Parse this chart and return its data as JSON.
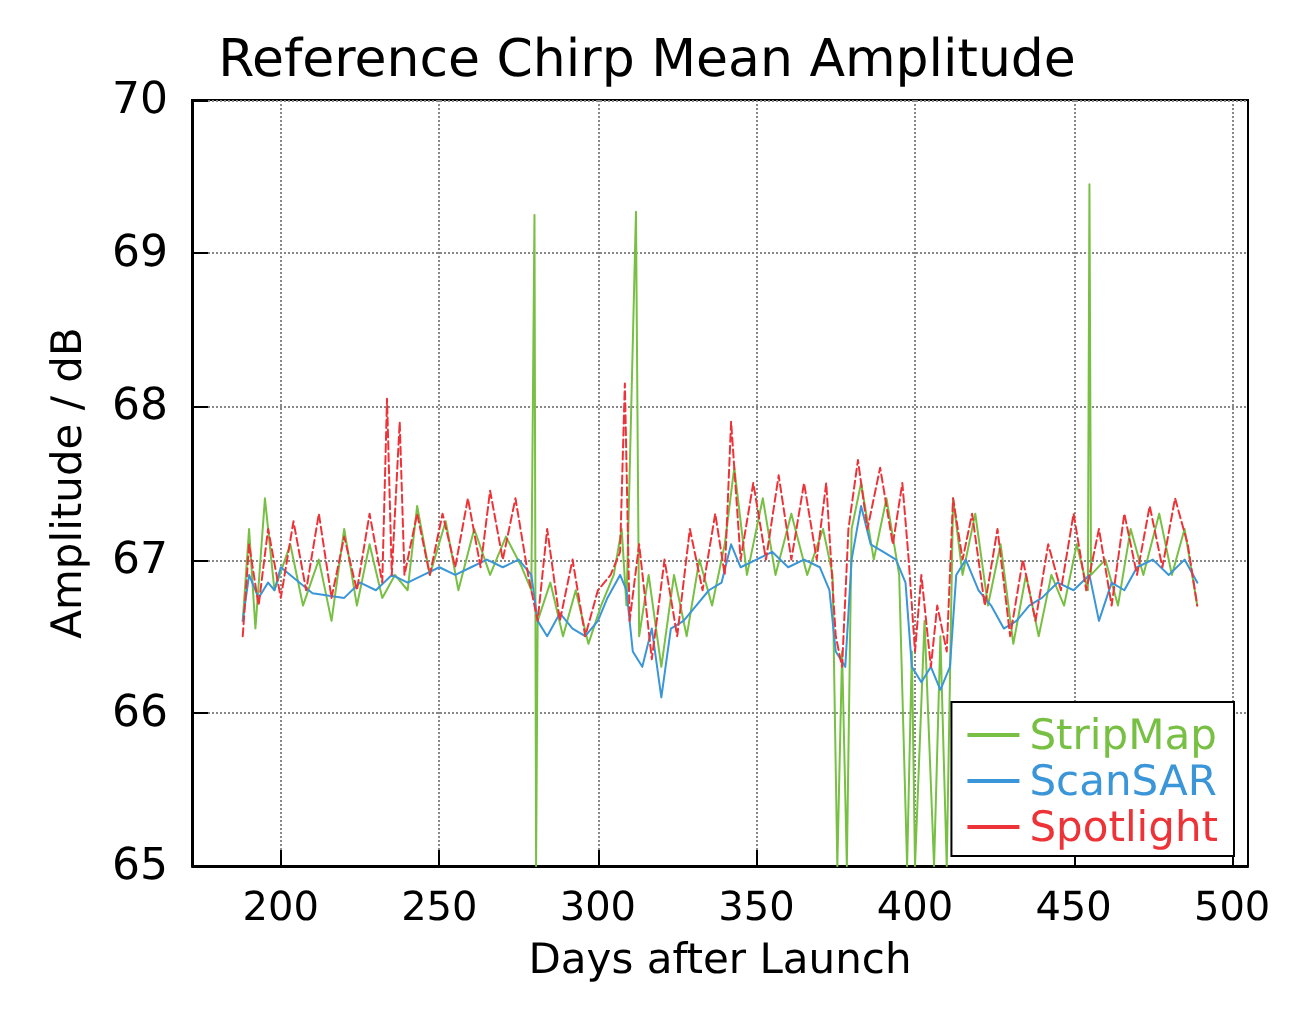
{
  "chart_data": {
    "type": "line",
    "title": "Reference Chirp Mean Amplitude",
    "xlabel": "Days after Launch",
    "ylabel": "Amplitude / dB",
    "xlim": [
      172,
      505
    ],
    "xticks": [
      200,
      250,
      300,
      350,
      400,
      450,
      500
    ],
    "ylim": [
      65,
      70
    ],
    "yticks": [
      65,
      66,
      67,
      68,
      69,
      70
    ],
    "grid": true,
    "legend": "bottom right",
    "marker": "none",
    "series": [
      {
        "name": "StripMap",
        "color": "#77c043",
        "line_style": "solid",
        "x": [
          188,
          190,
          192,
          195,
          198,
          203,
          207,
          212,
          216,
          220,
          224,
          228,
          232,
          236,
          240,
          243,
          247,
          252,
          256,
          261,
          266,
          271,
          276,
          279,
          280,
          280.5,
          281,
          285,
          289,
          293,
          297,
          301,
          305,
          307.5,
          309,
          312,
          313,
          316,
          320,
          324,
          328,
          332,
          336,
          340,
          343,
          347,
          352,
          356,
          361,
          366,
          371,
          374,
          375.5,
          377,
          378.5,
          380,
          383,
          387,
          391,
          395,
          397.5,
          399,
          400,
          403,
          406,
          408,
          410,
          412,
          415,
          419,
          423,
          427,
          431,
          435,
          439,
          443,
          447,
          451,
          454.5,
          455,
          455.5,
          460,
          464,
          468,
          472,
          477,
          481,
          485,
          489
        ],
        "values": [
          66.6,
          67.2,
          66.55,
          67.4,
          66.8,
          67.1,
          66.7,
          67.0,
          66.6,
          67.2,
          66.7,
          67.1,
          66.75,
          66.9,
          66.8,
          67.35,
          66.9,
          67.25,
          66.8,
          67.2,
          66.9,
          67.15,
          66.95,
          66.8,
          69.25,
          65.0,
          66.6,
          66.85,
          66.5,
          66.8,
          66.45,
          66.7,
          66.9,
          67.2,
          66.7,
          69.27,
          66.5,
          66.9,
          66.3,
          66.9,
          66.5,
          67.0,
          66.7,
          67.1,
          67.6,
          66.9,
          67.4,
          66.9,
          67.3,
          66.9,
          67.2,
          66.9,
          65.0,
          66.4,
          65.0,
          67.2,
          67.5,
          67.0,
          67.4,
          66.9,
          65.0,
          66.4,
          65.0,
          66.6,
          65.0,
          66.5,
          65.0,
          67.4,
          66.9,
          67.3,
          66.7,
          67.1,
          66.45,
          66.9,
          66.5,
          66.9,
          66.7,
          67.1,
          66.8,
          69.45,
          66.9,
          67.0,
          66.7,
          67.2,
          66.9,
          67.3,
          66.9,
          67.2,
          66.7
        ]
      },
      {
        "name": "ScanSAR",
        "color": "#3a96d8",
        "line_style": "solid",
        "x": [
          188,
          190,
          193,
          196,
          198,
          200,
          210,
          220,
          225,
          230,
          235,
          240,
          245,
          250,
          255,
          260,
          265,
          270,
          275,
          279,
          281,
          284,
          288,
          292,
          296,
          300,
          303,
          307,
          309,
          311,
          314,
          317,
          320,
          323,
          327,
          331,
          335,
          339,
          342,
          345,
          350,
          355,
          360,
          365,
          370,
          373,
          375,
          378,
          380,
          383,
          386,
          390,
          394,
          397,
          399,
          402,
          405,
          408,
          411,
          413,
          416,
          420,
          424,
          428,
          432,
          436,
          440,
          445,
          450,
          455,
          458,
          462,
          466,
          470,
          475,
          480,
          485,
          489
        ],
        "values": [
          66.6,
          66.9,
          66.75,
          66.85,
          66.8,
          66.95,
          66.78,
          66.75,
          66.85,
          66.8,
          66.9,
          66.85,
          66.9,
          66.95,
          66.9,
          66.95,
          67.0,
          66.95,
          67.0,
          66.9,
          66.6,
          66.5,
          66.65,
          66.55,
          66.5,
          66.6,
          66.75,
          66.9,
          66.8,
          66.4,
          66.3,
          66.55,
          66.1,
          66.55,
          66.6,
          66.7,
          66.8,
          66.85,
          67.1,
          66.95,
          67.0,
          67.05,
          66.95,
          67.0,
          66.95,
          66.8,
          66.4,
          66.3,
          67.0,
          67.35,
          67.1,
          67.05,
          67.0,
          66.85,
          66.3,
          66.2,
          66.3,
          66.15,
          66.3,
          66.9,
          67.0,
          66.8,
          66.7,
          66.55,
          66.6,
          66.7,
          66.75,
          66.85,
          66.8,
          66.9,
          66.6,
          66.85,
          66.8,
          66.95,
          67.0,
          66.9,
          67.0,
          66.85
        ]
      },
      {
        "name": "Spotlight",
        "color": "#ee3338",
        "line_style": "dashed",
        "x": [
          188,
          190,
          193,
          196,
          200,
          204,
          208,
          212,
          216,
          220,
          224,
          228,
          232,
          233.5,
          235,
          237.5,
          239,
          243,
          247,
          251,
          255,
          259,
          263,
          266,
          270,
          274,
          278,
          281,
          284,
          288,
          292,
          296,
          300,
          304,
          307,
          308.5,
          310,
          313,
          317,
          321,
          325,
          329,
          333,
          337,
          340,
          342,
          345,
          349,
          353,
          357,
          361,
          365,
          369,
          372,
          375,
          377,
          379,
          382,
          385,
          389,
          393,
          396,
          398,
          400,
          402,
          405,
          407,
          410,
          412,
          415,
          418,
          422,
          426,
          430,
          434,
          438,
          442,
          446,
          450,
          454,
          458,
          462,
          466,
          470,
          474,
          478,
          482,
          486,
          489
        ],
        "values": [
          66.5,
          67.1,
          66.7,
          67.2,
          66.75,
          67.25,
          66.8,
          67.3,
          66.75,
          67.15,
          66.8,
          67.3,
          66.85,
          68.05,
          66.9,
          67.9,
          66.9,
          67.3,
          66.9,
          67.3,
          66.95,
          67.4,
          66.95,
          67.45,
          67.0,
          67.4,
          66.9,
          66.6,
          67.2,
          66.6,
          67.0,
          66.5,
          66.8,
          66.9,
          67.05,
          68.15,
          66.6,
          67.1,
          66.35,
          67.0,
          66.5,
          67.2,
          66.8,
          67.3,
          66.9,
          67.9,
          67.0,
          67.5,
          67.0,
          67.55,
          67.0,
          67.5,
          67.0,
          67.5,
          66.5,
          66.3,
          67.2,
          67.65,
          67.2,
          67.6,
          67.1,
          67.5,
          67.0,
          66.4,
          66.9,
          66.3,
          66.7,
          66.4,
          67.4,
          67.0,
          67.3,
          66.7,
          67.2,
          66.5,
          67.0,
          66.6,
          67.1,
          66.8,
          67.3,
          66.8,
          67.2,
          66.7,
          67.3,
          66.9,
          67.35,
          66.95,
          67.4,
          67.1,
          66.7
        ]
      }
    ]
  }
}
